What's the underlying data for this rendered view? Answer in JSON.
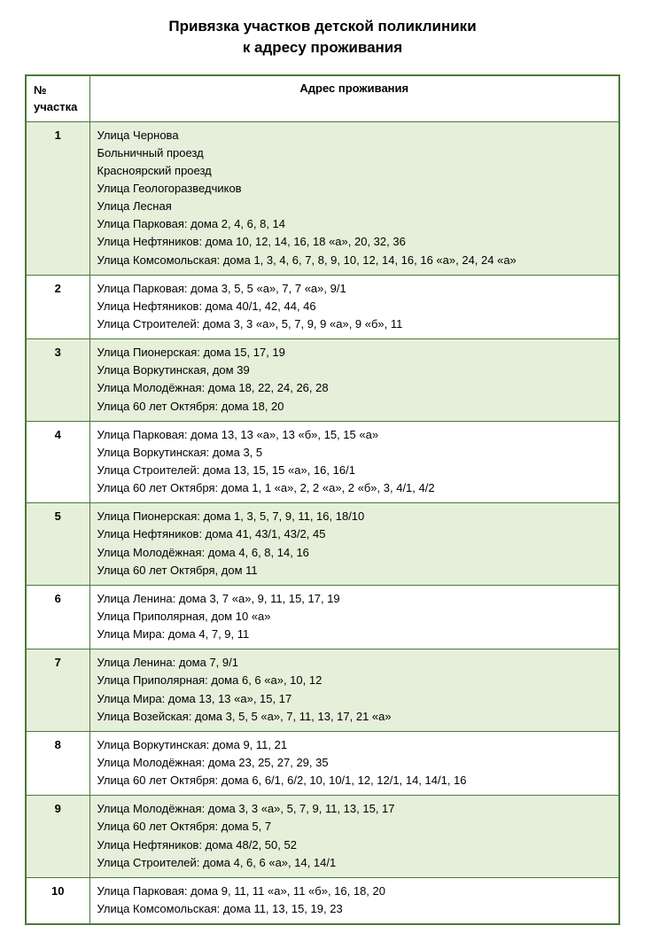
{
  "title_line1": "Привязка участков детской поликлиники",
  "title_line2": "к адресу проживания",
  "colors": {
    "border": "#4a7a3a",
    "stripe": "#e6efda",
    "background": "#ffffff",
    "text": "#000000"
  },
  "table": {
    "columns": {
      "num_label_line1": "№",
      "num_label_line2": "участка",
      "addr_label": "Адрес проживания"
    },
    "rows": [
      {
        "num": "1",
        "addresses": [
          "Улица Чернова",
          "Больничный проезд",
          "Красноярский проезд",
          "Улица Геологоразведчиков",
          "Улица Лесная",
          "Улица Парковая: дома 2, 4, 6, 8, 14",
          "Улица Нефтяников: дома 10, 12, 14, 16, 18 «а», 20, 32, 36",
          "Улица Комсомольская: дома 1, 3, 4, 6, 7, 8, 9, 10, 12, 14, 16, 16 «а», 24, 24 «а»"
        ]
      },
      {
        "num": "2",
        "addresses": [
          "Улица Парковая: дома 3, 5, 5 «а», 7, 7 «а», 9/1",
          "Улица Нефтяников: дома 40/1, 42, 44, 46",
          "Улица Строителей: дома 3, 3 «а», 5, 7, 9, 9 «а», 9 «б», 11"
        ]
      },
      {
        "num": "3",
        "addresses": [
          "Улица Пионерская: дома 15, 17, 19",
          "Улица Воркутинская, дом 39",
          "Улица Молодёжная: дома 18, 22, 24, 26, 28",
          "Улица 60 лет Октября: дома 18, 20"
        ]
      },
      {
        "num": "4",
        "addresses": [
          "Улица Парковая: дома 13, 13 «а», 13 «б», 15, 15 «а»",
          "Улица Воркутинская: дома 3, 5",
          "Улица Строителей: дома 13, 15, 15 «а», 16, 16/1",
          "Улица 60 лет Октября: дома 1, 1 «а», 2, 2 «а», 2 «б», 3, 4/1, 4/2"
        ]
      },
      {
        "num": "5",
        "addresses": [
          "Улица Пионерская: дома 1, 3, 5, 7, 9, 11, 16, 18/10",
          "Улица Нефтяников: дома 41, 43/1, 43/2, 45",
          "Улица Молодёжная: дома 4, 6, 8, 14, 16",
          "Улица 60 лет Октября, дом 11"
        ]
      },
      {
        "num": "6",
        "addresses": [
          "Улица Ленина: дома 3, 7 «а», 9, 11, 15, 17, 19",
          "Улица Приполярная, дом 10 «а»",
          "Улица Мира: дома 4, 7, 9, 11"
        ]
      },
      {
        "num": "7",
        "addresses": [
          "Улица Ленина: дома 7, 9/1",
          "Улица Приполярная: дома 6, 6 «а», 10, 12",
          "Улица Мира: дома 13, 13 «а», 15, 17",
          "Улица Возейская: дома 3, 5, 5 «а», 7, 11, 13, 17, 21 «а»"
        ]
      },
      {
        "num": "8",
        "addresses": [
          "Улица Воркутинская: дома 9, 11, 21",
          "Улица Молодёжная: дома 23, 25, 27, 29, 35",
          "Улица 60 лет Октября: дома 6, 6/1, 6/2, 10, 10/1, 12, 12/1, 14, 14/1, 16"
        ]
      },
      {
        "num": "9",
        "addresses": [
          "Улица Молодёжная: дома 3, 3 «а», 5, 7, 9, 11, 13, 15, 17",
          "Улица 60 лет Октября: дома 5, 7",
          "Улица Нефтяников: дома 48/2, 50, 52",
          "Улица Строителей: дома 4, 6, 6 «а», 14, 14/1"
        ]
      },
      {
        "num": "10",
        "addresses": [
          "Улица Парковая: дома 9, 11, 11 «а», 11 «б», 16, 18, 20",
          "Улица Комсомольская: дома 11, 13, 15, 19, 23"
        ]
      }
    ]
  }
}
